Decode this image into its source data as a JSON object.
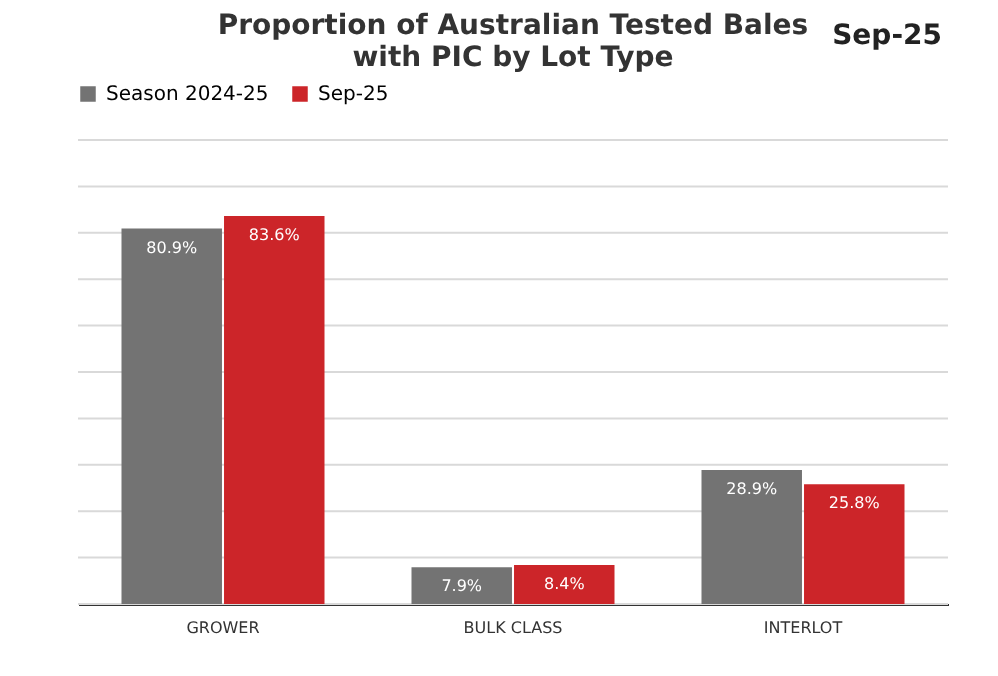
{
  "chart_data": {
    "type": "bar",
    "title": "Proportion of Australian Tested Bales\nwith PIC by Lot Type",
    "annotations": [
      "Sep-25"
    ],
    "categories": [
      "GROWER",
      "BULK CLASS",
      "INTERLOT"
    ],
    "series": [
      {
        "name": "Season 2024-25",
        "color": "#737373",
        "values": [
          80.9,
          7.9,
          28.9
        ],
        "value_labels": [
          "80.9%",
          "7.9%",
          "28.9%"
        ]
      },
      {
        "name": "Sep-25",
        "color": "#cc2529",
        "values": [
          83.6,
          8.4,
          25.8
        ],
        "value_labels": [
          "83.6%",
          "8.4%",
          "25.8%"
        ]
      }
    ],
    "ylim": [
      0,
      100
    ],
    "yticks": [
      {
        "value": 0,
        "label": null
      },
      {
        "value": 10,
        "label": null
      },
      {
        "value": 20,
        "label": null
      },
      {
        "value": 30,
        "label": null
      },
      {
        "value": 40,
        "label": null
      },
      {
        "value": 50,
        "label": null
      },
      {
        "value": 60,
        "label": null
      },
      {
        "value": 70,
        "label": null
      },
      {
        "value": 80,
        "label": null
      },
      {
        "value": 90,
        "label": null
      },
      {
        "value": 100,
        "label": null
      }
    ],
    "grid": "y",
    "legend": "top",
    "tick_labels": "x"
  }
}
